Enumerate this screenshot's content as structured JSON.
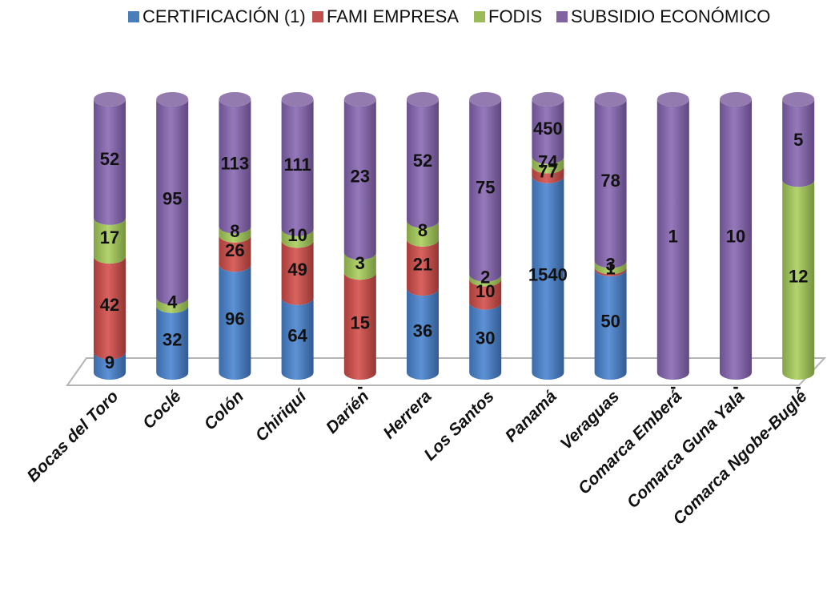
{
  "chart_data": {
    "type": "bar",
    "stacked": true,
    "legend_position": "top",
    "categories": [
      "Bocas del Toro",
      "Coclé",
      "Colón",
      "Chiriquí",
      "Darién",
      "Herrera",
      "Los Santos",
      "Panamá",
      "Veraguas",
      "Comarca Emberá",
      "Comarca Guna Yala",
      "Comarca Ngobe-Buglé"
    ],
    "series": [
      {
        "name": "CERTIFICACIÓN (1)",
        "color": "#4a7ebb",
        "values": [
          9,
          32,
          96,
          64,
          null,
          36,
          30,
          1540,
          50,
          null,
          null,
          null
        ],
        "labels": [
          "9",
          "32",
          "96",
          "64",
          "-",
          "36",
          "30",
          "1540",
          "50",
          "-",
          "-",
          "-"
        ]
      },
      {
        "name": "FAMI EMPRESA",
        "color": "#c0504d",
        "values": [
          42,
          null,
          26,
          49,
          15,
          21,
          10,
          77,
          1,
          null,
          null,
          null
        ],
        "labels": [
          "42",
          "",
          "26",
          "49",
          "15",
          "21",
          "10",
          "77",
          "1",
          "",
          "",
          ""
        ]
      },
      {
        "name": "FODIS",
        "color": "#9bbb59",
        "values": [
          17,
          4,
          8,
          10,
          3,
          8,
          2,
          74,
          3,
          null,
          null,
          12
        ],
        "labels": [
          "17",
          "4",
          "8",
          "10",
          "3",
          "8",
          "2",
          "74",
          "3",
          "",
          "",
          "12"
        ]
      },
      {
        "name": "SUBSIDIO ECONÓMICO",
        "color": "#8064a2",
        "values": [
          52,
          95,
          113,
          111,
          23,
          52,
          75,
          450,
          78,
          1,
          10,
          5
        ],
        "labels": [
          "52",
          "95",
          "113",
          "111",
          "23",
          "52",
          "75",
          "450",
          "78",
          "1",
          "10",
          "5"
        ]
      }
    ]
  }
}
